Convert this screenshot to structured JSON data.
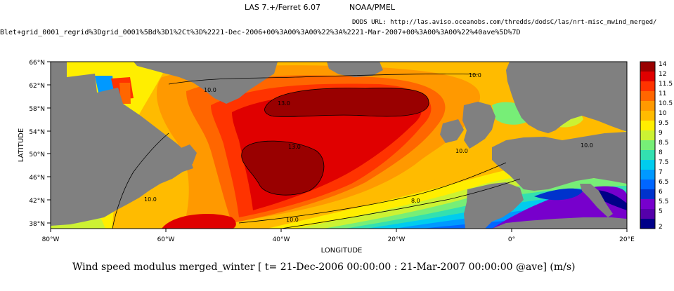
{
  "header": {
    "las_version": "LAS 7.+/Ferret 6.07",
    "org": "NOAA/PMEL",
    "dods_url": "DODS URL: http://las.aviso.oceanobs.com/thredds/dodsC/las/nrt-misc_mwind_merged/",
    "query_string": "Blet+grid_0001_regrid%3Dgrid_0001%5Bd%3D1%2Ct%3D%2221-Dec-2006+00%3A00%3A00%22%3A%2221-Mar-2007+00%3A00%3A00%22%40ave%5D%7D"
  },
  "map": {
    "xlabel": "LONGITUDE",
    "ylabel": "LATITUDE",
    "lon_ticks": [
      "80°W",
      "60°W",
      "40°W",
      "20°W",
      "0°",
      "20°E"
    ],
    "lat_ticks": [
      "66°N",
      "62°N",
      "58°N",
      "54°N",
      "50°N",
      "46°N",
      "42°N",
      "38°N"
    ],
    "contour_labels": [
      "10.0",
      "10.0",
      "10.0",
      "10.0",
      "10.0",
      "10.0",
      "8.0",
      "13.0",
      "13.0"
    ],
    "land_color": "#808080"
  },
  "colorbar": {
    "labels": [
      "14",
      "12",
      "11.5",
      "11",
      "10.5",
      "10",
      "9.5",
      "9",
      "8.5",
      "8",
      "7.5",
      "7",
      "6.5",
      "6",
      "5.5",
      "5",
      "2"
    ],
    "colors": [
      "#990000",
      "#e00000",
      "#ff3300",
      "#ff6600",
      "#ff9900",
      "#ffbb00",
      "#ffee00",
      "#ccf233",
      "#77ee77",
      "#33e0b0",
      "#00ccee",
      "#0099ff",
      "#0066ff",
      "#0033cc",
      "#7700cc",
      "#5500aa",
      "#000088"
    ]
  },
  "caption": "Wind speed modulus merged_winter [ t= 21-Dec-2006 00:00:00 : 21-Mar-2007 00:00:00 @ave] (m/s)"
}
